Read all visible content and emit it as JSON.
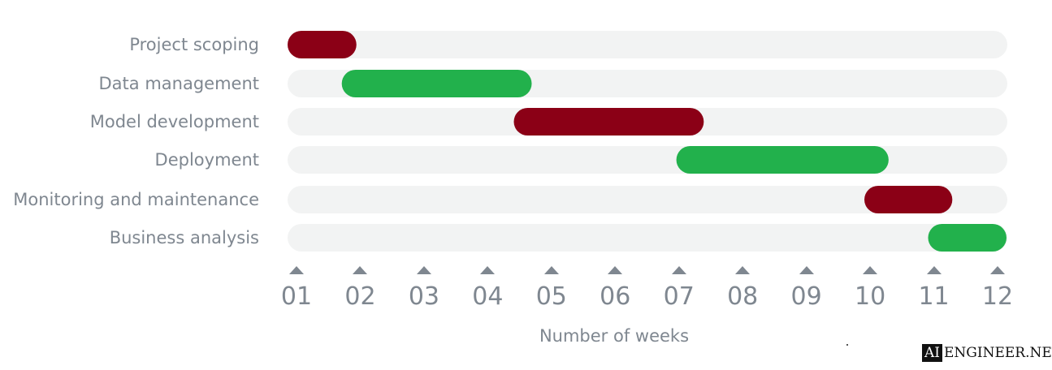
{
  "chart_data": {
    "type": "gantt",
    "xlabel": "Number of weeks",
    "x_ticks": [
      "01",
      "02",
      "03",
      "04",
      "05",
      "06",
      "07",
      "08",
      "09",
      "10",
      "11",
      "12"
    ],
    "xlim": [
      1,
      12
    ],
    "tasks": [
      {
        "name": "Project scoping",
        "start": 1.0,
        "end": 1.8,
        "color": "#8b0016"
      },
      {
        "name": "Data management",
        "start": 1.85,
        "end": 4.55,
        "color": "#22b14c"
      },
      {
        "name": "Model development",
        "start": 4.55,
        "end": 7.25,
        "color": "#8b0016"
      },
      {
        "name": "Deployment",
        "start": 7.1,
        "end": 10.15,
        "color": "#22b14c"
      },
      {
        "name": "Monitoring and maintenance",
        "start": 10.05,
        "end": 11.15,
        "color": "#8b0016"
      },
      {
        "name": "Business analysis",
        "start": 11.05,
        "end": 12.0,
        "color": "#22b14c"
      }
    ],
    "track_color": "#f2f3f3"
  },
  "watermark": {
    "box_text": "AI",
    "text": "ENGINEER.NET"
  }
}
